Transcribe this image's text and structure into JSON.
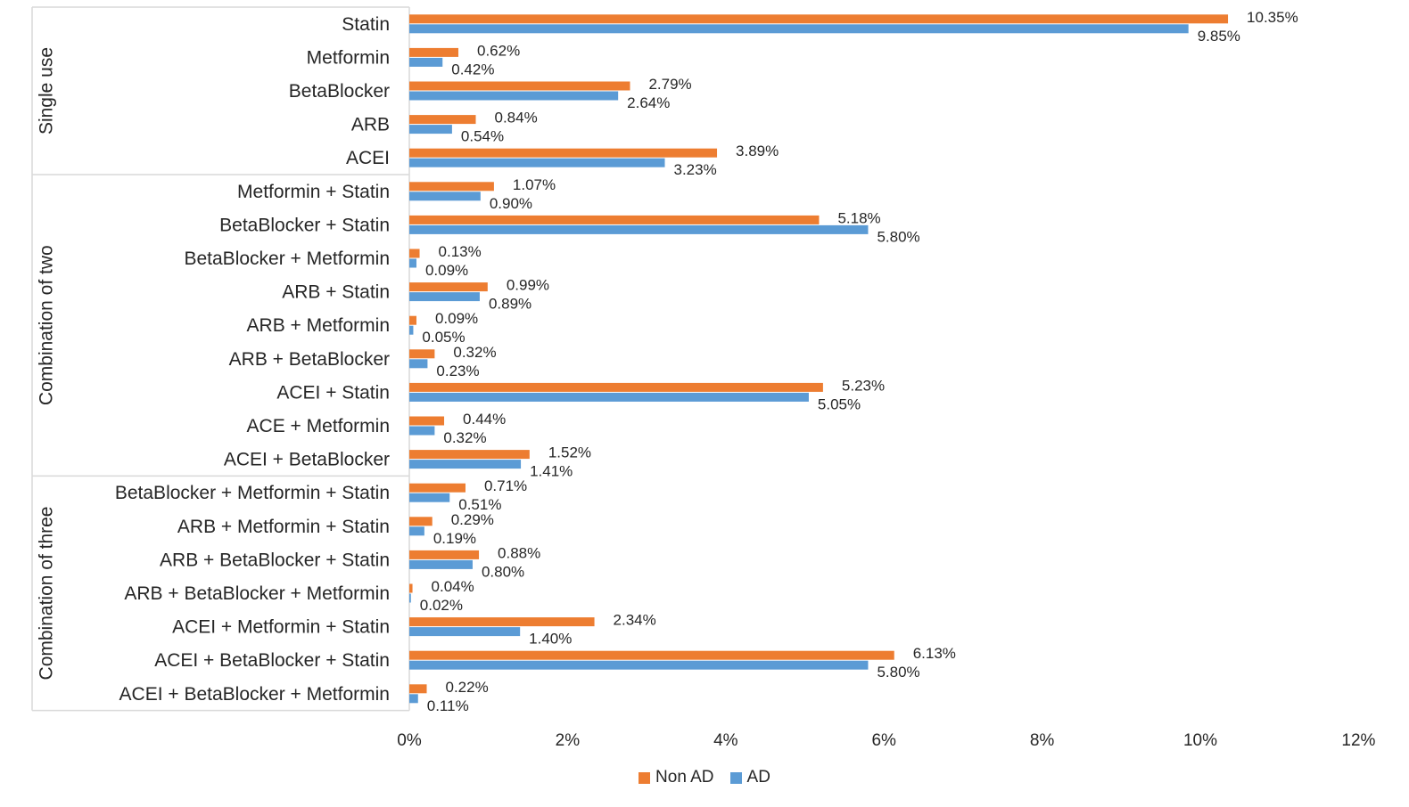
{
  "chart_data": {
    "type": "bar",
    "orientation": "horizontal",
    "groups": [
      {
        "label": "Single use",
        "categories": [
          "Statin",
          "Metformin",
          "BetaBlocker",
          "ARB",
          "ACEI"
        ]
      },
      {
        "label": "Combination of two",
        "categories": [
          "Metformin + Statin",
          "BetaBlocker + Statin",
          "BetaBlocker + Metformin",
          "ARB + Statin",
          "ARB + Metformin",
          "ARB + BetaBlocker",
          "ACEI + Statin",
          "ACE + Metformin",
          "ACEI + BetaBlocker"
        ]
      },
      {
        "label": "Combination of three",
        "categories": [
          "BetaBlocker + Metformin + Statin",
          "ARB + Metformin + Statin",
          "ARB + BetaBlocker + Statin",
          "ARB + BetaBlocker + Metformin",
          "ACEI + Metformin + Statin",
          "ACEI + BetaBlocker + Statin",
          "ACEI + BetaBlocker + Metformin"
        ]
      }
    ],
    "categories": [
      "Statin",
      "Metformin",
      "BetaBlocker",
      "ARB",
      "ACEI",
      "Metformin + Statin",
      "BetaBlocker + Statin",
      "BetaBlocker + Metformin",
      "ARB + Statin",
      "ARB + Metformin",
      "ARB + BetaBlocker",
      "ACEI + Statin",
      "ACE + Metformin",
      "ACEI + BetaBlocker",
      "BetaBlocker + Metformin + Statin",
      "ARB + Metformin + Statin",
      "ARB + BetaBlocker + Statin",
      "ARB + BetaBlocker + Metformin",
      "ACEI + Metformin + Statin",
      "ACEI + BetaBlocker + Statin",
      "ACEI + BetaBlocker + Metformin"
    ],
    "series": [
      {
        "name": "Non AD",
        "color": "#ED7D31",
        "values": [
          10.35,
          0.62,
          2.79,
          0.84,
          3.89,
          1.07,
          5.18,
          0.13,
          0.99,
          0.09,
          0.32,
          5.23,
          0.44,
          1.52,
          0.71,
          0.29,
          0.88,
          0.04,
          2.34,
          6.13,
          0.22
        ],
        "labels": [
          "10.35%",
          "0.62%",
          "2.79%",
          "0.84%",
          "3.89%",
          "1.07%",
          "5.18%",
          "0.13%",
          "0.99%",
          "0.09%",
          "0.32%",
          "5.23%",
          "0.44%",
          "1.52%",
          "0.71%",
          "0.29%",
          "0.88%",
          "0.04%",
          "2.34%",
          "6.13%",
          "0.22%"
        ]
      },
      {
        "name": "AD",
        "color": "#5B9BD5",
        "values": [
          9.85,
          0.42,
          2.64,
          0.54,
          3.23,
          0.9,
          5.8,
          0.09,
          0.89,
          0.05,
          0.23,
          5.05,
          0.32,
          1.41,
          0.51,
          0.19,
          0.8,
          0.02,
          1.4,
          5.8,
          0.11
        ],
        "labels": [
          "9.85%",
          "0.42%",
          "2.64%",
          "0.54%",
          "3.23%",
          "0.90%",
          "5.80%",
          "0.09%",
          "0.89%",
          "0.05%",
          "0.23%",
          "5.05%",
          "0.32%",
          "1.41%",
          "0.51%",
          "0.19%",
          "0.80%",
          "0.02%",
          "1.40%",
          "5.80%",
          "0.11%"
        ]
      }
    ],
    "xticks": [
      "0%",
      "2%",
      "4%",
      "6%",
      "8%",
      "10%",
      "12%"
    ],
    "xlim": [
      0,
      12
    ],
    "grid": false,
    "legend_position": "bottom"
  }
}
